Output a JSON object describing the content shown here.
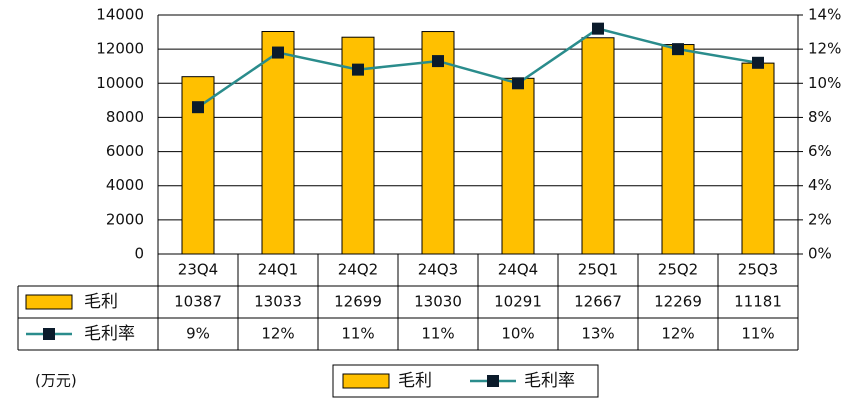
{
  "chart_data": {
    "type": "bar-line-table",
    "unit_label": "(万元)",
    "categories": [
      "23Q4",
      "24Q1",
      "24Q2",
      "24Q3",
      "24Q4",
      "25Q1",
      "25Q2",
      "25Q3"
    ],
    "series": [
      {
        "name": "毛利",
        "type": "bar",
        "color": "#FFC000",
        "values": [
          10387,
          13033,
          12699,
          13030,
          10291,
          12667,
          12269,
          11181
        ]
      },
      {
        "name": "毛利率",
        "type": "line",
        "axis": "y2",
        "color": "#2A8C8C",
        "marker_color": "#0B1B2B",
        "values": [
          8.6,
          11.8,
          10.8,
          11.3,
          10.0,
          13.2,
          12.0,
          11.2
        ],
        "value_labels": [
          "9%",
          "12%",
          "11%",
          "11%",
          "10%",
          "13%",
          "12%",
          "11%"
        ]
      }
    ],
    "ylim": [
      0,
      14000
    ],
    "yticks": [
      0,
      2000,
      4000,
      6000,
      8000,
      10000,
      12000,
      14000
    ],
    "y2lim": [
      0,
      14
    ],
    "y2ticks": [
      {
        "value": 0,
        "label": "0%"
      },
      {
        "value": 2,
        "label": "2%"
      },
      {
        "value": 4,
        "label": "4%"
      },
      {
        "value": 6,
        "label": "6%"
      },
      {
        "value": 8,
        "label": "8%"
      },
      {
        "value": 10,
        "label": "10%"
      },
      {
        "value": 12,
        "label": "12%"
      },
      {
        "value": 14,
        "label": "14%"
      }
    ],
    "grid": true
  }
}
